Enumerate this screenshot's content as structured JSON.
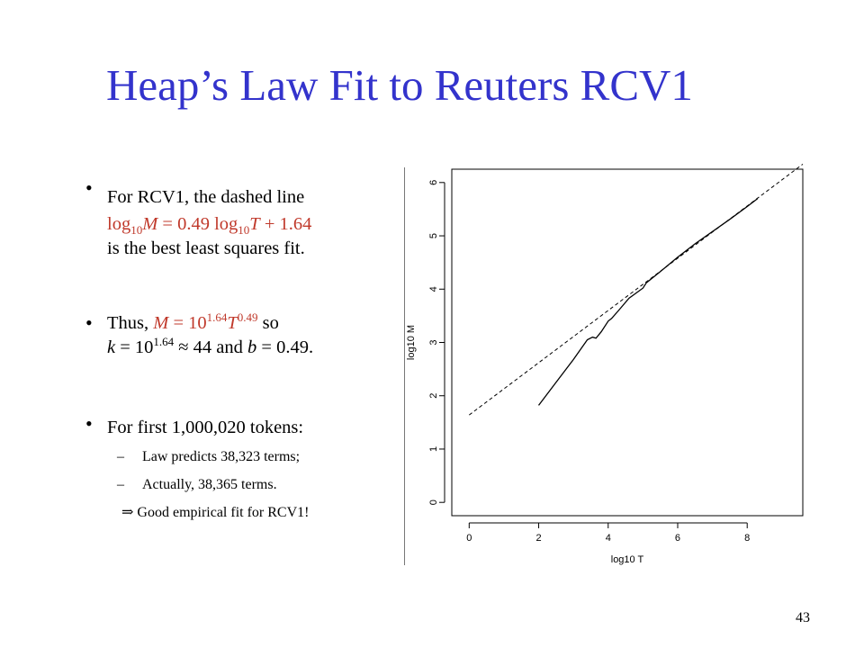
{
  "title": "Heap’s Law Fit to Reuters RCV1",
  "page_number": "43",
  "bullets": {
    "b1_line1": "For RCV1, the dashed line",
    "b1_eq_log": "log",
    "b1_eq_10a": "10",
    "b1_eq_M": "M",
    "b1_eq_mid": " = 0.49 log",
    "b1_eq_10b": "10",
    "b1_eq_T": "T",
    "b1_eq_end": " + 1.64",
    "b1_line3": "is the best least squares fit.",
    "b2_thus": "Thus, ",
    "b2_M": "M",
    "b2_eq": " = 10",
    "b2_sup1": "1.64",
    "b2_T": "T",
    "b2_sup2": "0.49",
    "b2_so": " so",
    "b2_k": "k",
    "b2_keq": " = 10",
    "b2_sup3": "1.64",
    "b2_approx": " ≈ 44 and ",
    "b2_b": "b",
    "b2_bval": " = 0.49.",
    "b3_line1": "For first 1,000,020 tokens:",
    "b3_sub1": "Law predicts 38,323 terms;",
    "b3_sub2": "Actually, 38,365 terms.",
    "b3_conclusion_symbol": "⇒",
    "b3_conclusion": "Good empirical fit for RCV1!"
  },
  "chart_data": {
    "type": "line",
    "xlabel": "log10 T",
    "ylabel": "log10 M",
    "xlim": [
      -0.5,
      9.6
    ],
    "ylim": [
      -0.25,
      6.25
    ],
    "xticks": [
      0,
      2,
      4,
      6,
      8
    ],
    "yticks": [
      0,
      1,
      2,
      3,
      4,
      5,
      6
    ],
    "grid": false,
    "series": [
      {
        "style": "solid",
        "color": "#000000",
        "points": [
          [
            2.0,
            1.82
          ],
          [
            2.5,
            2.25
          ],
          [
            3.0,
            2.68
          ],
          [
            3.4,
            3.05
          ],
          [
            3.55,
            3.1
          ],
          [
            3.65,
            3.08
          ],
          [
            3.8,
            3.2
          ],
          [
            4.0,
            3.4
          ],
          [
            4.1,
            3.45
          ],
          [
            4.3,
            3.6
          ],
          [
            4.6,
            3.83
          ],
          [
            5.0,
            4.02
          ],
          [
            5.1,
            4.12
          ],
          [
            5.5,
            4.33
          ],
          [
            6.0,
            4.6
          ],
          [
            6.5,
            4.85
          ],
          [
            7.0,
            5.08
          ],
          [
            7.5,
            5.31
          ],
          [
            8.0,
            5.55
          ],
          [
            8.3,
            5.7
          ]
        ]
      },
      {
        "style": "dashed",
        "color": "#000000",
        "points": [
          [
            0,
            1.64
          ],
          [
            9.6,
            6.344
          ]
        ]
      }
    ]
  }
}
